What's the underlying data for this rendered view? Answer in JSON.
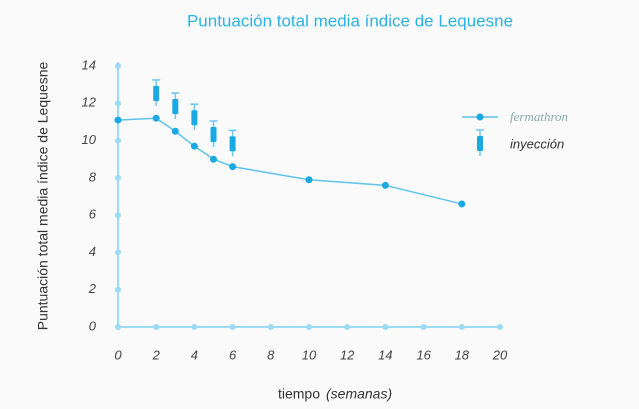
{
  "chart_data": {
    "type": "line",
    "title": "Puntuación total media índice de Lequesne",
    "ylabel": "Puntuación total media índice de Lequesne",
    "xlabel": "tiempo",
    "xlabel_unit": "(semanas)",
    "xlim": [
      0,
      20
    ],
    "xticks": [
      0,
      2,
      4,
      6,
      8,
      10,
      12,
      14,
      16,
      18,
      20
    ],
    "ylim": [
      0,
      14
    ],
    "yticks": [
      0,
      2,
      4,
      6,
      8,
      10,
      12,
      14
    ],
    "series": [
      {
        "name": "fermathron",
        "color": "#1aa9e2",
        "marker": "dot",
        "x": [
          0,
          2,
          3,
          4,
          5,
          6,
          10,
          14,
          18
        ],
        "values": [
          11.1,
          11.2,
          10.5,
          9.7,
          9.0,
          8.6,
          7.9,
          7.6,
          6.6
        ]
      },
      {
        "name": "inyección",
        "color": "#1aa9e2",
        "marker": "syringe",
        "x": [
          2,
          3,
          4,
          5,
          6
        ],
        "values": [
          12.5,
          11.8,
          11.2,
          10.3,
          9.8
        ]
      }
    ],
    "legend": "right"
  }
}
